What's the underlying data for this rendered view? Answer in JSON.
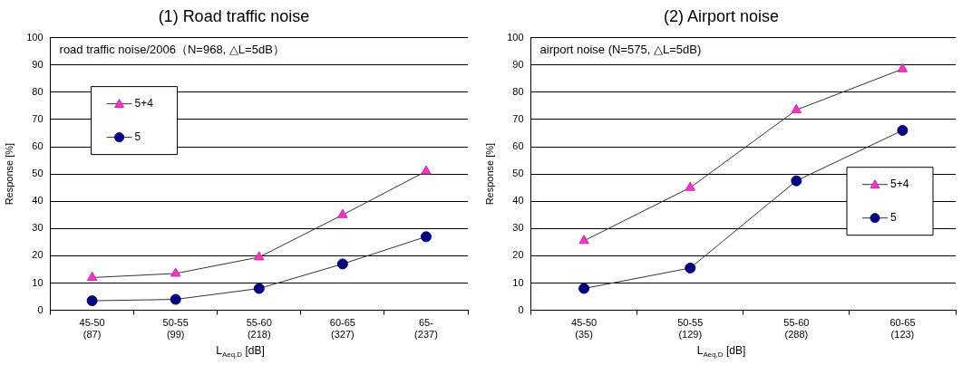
{
  "chart_data": [
    {
      "type": "line",
      "title": "(1) Road traffic noise",
      "xlabel": "L$_{Aeq,D}$ [dB]",
      "ylabel": "Response [%]",
      "categories": [
        "45-50\n(87)",
        "50-55\n(99)",
        "55-60\n(218)",
        "60-65\n(327)",
        "65-\n(237)"
      ],
      "series": [
        {
          "name": "5+4",
          "color": "#ff33cc",
          "marker": "triangle",
          "values": [
            12,
            13.5,
            19.5,
            35,
            51
          ]
        },
        {
          "name": "5",
          "color": "#000080",
          "marker": "circle",
          "values": [
            3.5,
            4,
            8,
            17,
            27
          ]
        }
      ],
      "ylim": [
        0,
        100
      ],
      "yticks": [
        0,
        10,
        20,
        30,
        40,
        50,
        60,
        70,
        80,
        90,
        100
      ],
      "grid": "y",
      "legend": "top left",
      "annotations": [
        "road traffic noise/2006（N=968, △L=5dB）"
      ]
    },
    {
      "type": "line",
      "title": "(2) Airport noise",
      "xlabel": "L$_{Aeq,D}$ [dB]",
      "ylabel": "Response [%]",
      "categories": [
        "45-50\n(35)",
        "50-55\n(129)",
        "55-60\n(288)",
        "60-65\n(123)"
      ],
      "series": [
        {
          "name": "5+4",
          "color": "#ff33cc",
          "marker": "triangle",
          "values": [
            25.5,
            45,
            73.5,
            88.5
          ]
        },
        {
          "name": "5",
          "color": "#000080",
          "marker": "circle",
          "values": [
            8,
            15.5,
            47.5,
            66
          ]
        }
      ],
      "ylim": [
        0,
        100
      ],
      "yticks": [
        0,
        10,
        20,
        30,
        40,
        50,
        60,
        70,
        80,
        90,
        100
      ],
      "grid": "y",
      "legend": "right",
      "annotations": [
        "airport noise (N=575, △L=5dB)"
      ]
    }
  ]
}
